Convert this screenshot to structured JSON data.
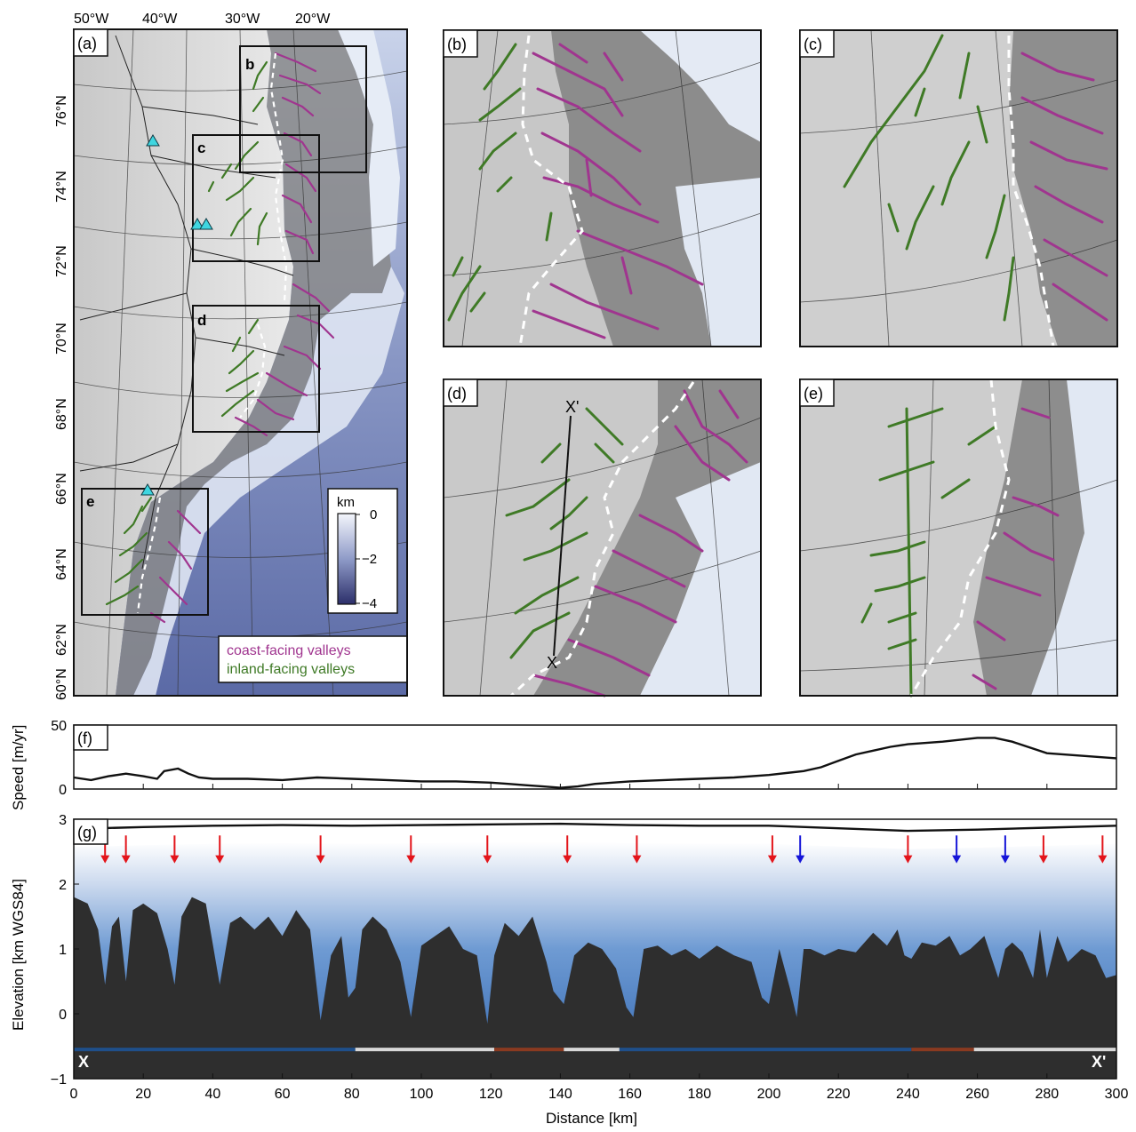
{
  "panel_a": {
    "label": "(a)",
    "lon_labels": [
      "50°W",
      "40°W",
      "30°W",
      "20°W"
    ],
    "lat_labels": [
      "76°N",
      "74°N",
      "72°N",
      "70°N",
      "68°N",
      "66°N",
      "64°N",
      "62°N",
      "60°N"
    ],
    "box_labels": [
      "b",
      "c",
      "d",
      "e"
    ],
    "colorbar": {
      "title": "km",
      "ticks": [
        "0",
        "−2",
        "−4"
      ]
    },
    "legend": {
      "coast": "coast-facing valleys",
      "inland": "inland-facing valleys"
    }
  },
  "panel_labels": {
    "b": "(b)",
    "c": "(c)",
    "d": "(d)",
    "e": "(e)",
    "f": "(f)",
    "g": "(g)"
  },
  "profile_markers": {
    "start": "X",
    "end": "X'"
  },
  "colors": {
    "coast": "#a0358f",
    "inland": "#3f7a26",
    "divide": "#ffffff",
    "marker": "#3fd6e0",
    "red_arrow": "#e3141a",
    "blue_arrow": "#1515d8",
    "bed": "#2e2e2e",
    "ice": "#3e74b6"
  },
  "chart_data": [
    {
      "type": "line",
      "panel": "(f)",
      "ylabel": "Speed [m/yr]",
      "xlim": [
        0,
        300
      ],
      "ylim": [
        0,
        50
      ],
      "yticks": [
        "0",
        "50"
      ],
      "x": [
        0,
        5,
        10,
        15,
        20,
        24,
        26,
        30,
        33,
        36,
        40,
        50,
        60,
        70,
        80,
        90,
        100,
        110,
        120,
        125,
        130,
        135,
        140,
        145,
        150,
        160,
        170,
        180,
        190,
        200,
        210,
        215,
        220,
        225,
        230,
        235,
        240,
        250,
        260,
        265,
        270,
        280,
        290,
        300
      ],
      "y": [
        9,
        7,
        10,
        12,
        10,
        8,
        14,
        16,
        12,
        9,
        8,
        8,
        7,
        9,
        8,
        7,
        6,
        6,
        5,
        4,
        3,
        2,
        1,
        2,
        4,
        6,
        7,
        8,
        9,
        11,
        14,
        17,
        22,
        27,
        30,
        33,
        35,
        37,
        40,
        40,
        37,
        28,
        26,
        24
      ]
    },
    {
      "type": "area",
      "panel": "(g)",
      "xlabel": "Distance [km]",
      "ylabel": "Elevation [km WGS84]",
      "xlim": [
        0,
        300
      ],
      "ylim": [
        -1,
        3
      ],
      "xticks": [
        "0",
        "20",
        "40",
        "60",
        "80",
        "100",
        "120",
        "140",
        "160",
        "180",
        "200",
        "220",
        "240",
        "260",
        "280",
        "300"
      ],
      "yticks": [
        "−1",
        "0",
        "1",
        "2",
        "3"
      ],
      "surface": {
        "x": [
          0,
          20,
          40,
          60,
          80,
          100,
          120,
          140,
          160,
          180,
          200,
          220,
          240,
          260,
          280,
          300
        ],
        "y": [
          2.85,
          2.88,
          2.9,
          2.91,
          2.9,
          2.91,
          2.92,
          2.93,
          2.91,
          2.9,
          2.9,
          2.86,
          2.82,
          2.84,
          2.87,
          2.9
        ]
      },
      "bed": {
        "x": [
          0,
          4,
          7,
          9,
          11,
          13,
          15,
          17,
          20,
          24,
          27,
          29,
          31,
          34,
          38,
          42,
          45,
          48,
          52,
          56,
          60,
          64,
          68,
          71,
          74,
          77,
          79,
          81,
          83,
          86,
          90,
          94,
          97,
          100,
          104,
          108,
          112,
          116,
          119,
          121,
          124,
          128,
          132,
          136,
          138,
          141,
          144,
          148,
          152,
          156,
          159,
          161,
          164,
          168,
          172,
          176,
          180,
          185,
          190,
          195,
          198,
          200,
          203,
          206,
          208,
          210,
          212,
          216,
          220,
          225,
          230,
          234,
          237,
          239,
          241,
          244,
          248,
          252,
          255,
          258,
          262,
          266,
          268,
          270,
          273,
          276,
          278,
          280,
          283,
          286,
          290,
          294,
          297,
          300
        ],
        "y": [
          1.8,
          1.7,
          1.3,
          0.45,
          1.35,
          1.5,
          0.5,
          1.6,
          1.7,
          1.55,
          1.0,
          0.45,
          1.5,
          1.8,
          1.7,
          0.45,
          1.4,
          1.5,
          1.3,
          1.5,
          1.2,
          1.6,
          1.3,
          -0.1,
          0.9,
          1.2,
          0.25,
          0.4,
          1.3,
          1.5,
          1.3,
          0.8,
          -0.05,
          1.05,
          1.2,
          1.35,
          1.0,
          0.9,
          -0.15,
          0.9,
          1.4,
          1.2,
          1.5,
          0.8,
          0.35,
          0.15,
          0.9,
          1.1,
          1.0,
          0.7,
          0.1,
          -0.05,
          1.0,
          1.05,
          0.9,
          1.0,
          0.85,
          1.05,
          0.9,
          0.8,
          0.25,
          0.15,
          1.0,
          0.4,
          -0.05,
          1.0,
          1.0,
          0.9,
          1.0,
          0.95,
          1.25,
          1.05,
          1.3,
          0.9,
          0.85,
          1.1,
          1.05,
          1.2,
          0.9,
          1.0,
          1.2,
          0.55,
          1.0,
          1.1,
          0.95,
          0.55,
          1.3,
          0.55,
          1.2,
          0.8,
          1.0,
          0.9,
          0.55,
          0.6
        ]
      },
      "red_arrows_km": [
        9,
        15,
        29,
        42,
        71,
        97,
        119,
        142,
        162,
        201,
        240,
        279,
        296
      ],
      "blue_arrows_km": [
        209,
        254,
        268
      ],
      "bottom_bar": [
        {
          "from": 0,
          "to": 81,
          "color": "#1f4f8a"
        },
        {
          "from": 81,
          "to": 121,
          "color": "#d8d8d8"
        },
        {
          "from": 121,
          "to": 141,
          "color": "#8a3a20"
        },
        {
          "from": 141,
          "to": 157,
          "color": "#d8d8d8"
        },
        {
          "from": 157,
          "to": 241,
          "color": "#1f4f8a"
        },
        {
          "from": 241,
          "to": 259,
          "color": "#8a3a20"
        },
        {
          "from": 259,
          "to": 300,
          "color": "#d8d8d8"
        }
      ]
    }
  ]
}
